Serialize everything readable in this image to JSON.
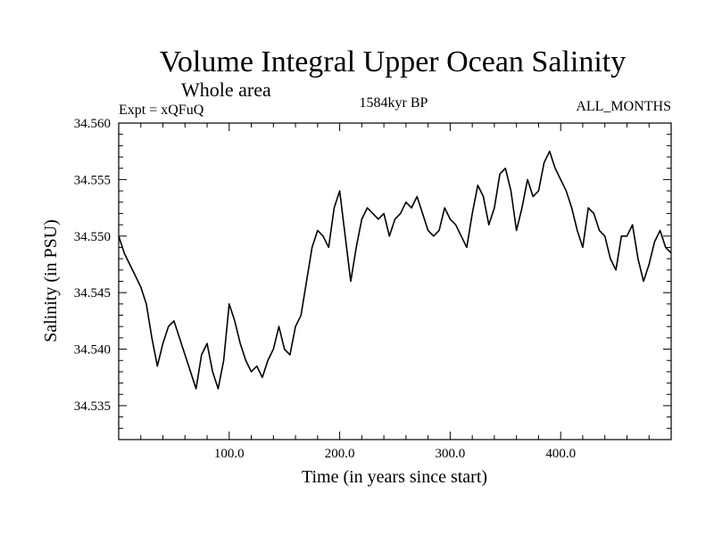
{
  "chart_data": {
    "type": "line",
    "title": "Volume Integral Upper Ocean Salinity",
    "subtitle": "Whole area",
    "annotations": {
      "left": "Expt = xQFuQ",
      "center": "1584kyr BP",
      "right": "ALL_MONTHS"
    },
    "xlabel": "Time (in years since start)",
    "ylabel": "Salinity (in PSU)",
    "xlim": [
      0,
      500
    ],
    "ylim": [
      34.532,
      34.56
    ],
    "x_ticks": [
      100,
      200,
      300,
      400
    ],
    "x_tick_labels": [
      "100.0",
      "200.0",
      "300.0",
      "400.0"
    ],
    "y_ticks": [
      34.535,
      34.54,
      34.545,
      34.55,
      34.555,
      34.56
    ],
    "y_tick_labels": [
      "34.535",
      "34.540",
      "34.545",
      "34.550",
      "34.555",
      "34.560"
    ],
    "grid": false,
    "series": [
      {
        "name": "Salinity",
        "x": [
          0,
          5,
          10,
          15,
          20,
          25,
          30,
          35,
          40,
          45,
          50,
          55,
          60,
          65,
          70,
          75,
          80,
          85,
          90,
          95,
          100,
          105,
          110,
          115,
          120,
          125,
          130,
          135,
          140,
          145,
          150,
          155,
          160,
          165,
          170,
          175,
          180,
          185,
          190,
          195,
          200,
          205,
          210,
          215,
          220,
          225,
          230,
          235,
          240,
          245,
          250,
          255,
          260,
          265,
          270,
          275,
          280,
          285,
          290,
          295,
          300,
          305,
          310,
          315,
          320,
          325,
          330,
          335,
          340,
          345,
          350,
          355,
          360,
          365,
          370,
          375,
          380,
          385,
          390,
          395,
          400,
          405,
          410,
          415,
          420,
          425,
          430,
          435,
          440,
          445,
          450,
          455,
          460,
          465,
          470,
          475,
          480,
          485,
          490,
          495,
          500
        ],
        "values": [
          34.55,
          34.5485,
          34.5475,
          34.5465,
          34.5455,
          34.544,
          34.541,
          34.5385,
          34.5405,
          34.542,
          34.5425,
          34.541,
          34.5395,
          34.538,
          34.5365,
          34.5395,
          34.5405,
          34.538,
          34.5365,
          34.539,
          34.544,
          34.5425,
          34.5405,
          34.539,
          34.538,
          34.5385,
          34.5375,
          34.539,
          34.54,
          34.542,
          34.54,
          34.5395,
          34.542,
          34.543,
          34.546,
          34.549,
          34.5505,
          34.55,
          34.549,
          34.5525,
          34.554,
          34.55,
          34.546,
          34.549,
          34.5515,
          34.5525,
          34.552,
          34.5515,
          34.552,
          34.55,
          34.5515,
          34.552,
          34.553,
          34.5525,
          34.5535,
          34.552,
          34.5505,
          34.55,
          34.5505,
          34.5525,
          34.5515,
          34.551,
          34.55,
          34.549,
          34.552,
          34.5545,
          34.5535,
          34.551,
          34.5525,
          34.5555,
          34.556,
          34.554,
          34.5505,
          34.5525,
          34.555,
          34.5535,
          34.554,
          34.5565,
          34.5575,
          34.556,
          34.555,
          34.554,
          34.5525,
          34.5505,
          34.549,
          34.5525,
          34.552,
          34.5505,
          34.55,
          34.548,
          34.547,
          34.55,
          34.55,
          34.551,
          34.548,
          34.546,
          34.5475,
          34.5495,
          34.5505,
          34.549,
          34.5485
        ]
      }
    ]
  }
}
